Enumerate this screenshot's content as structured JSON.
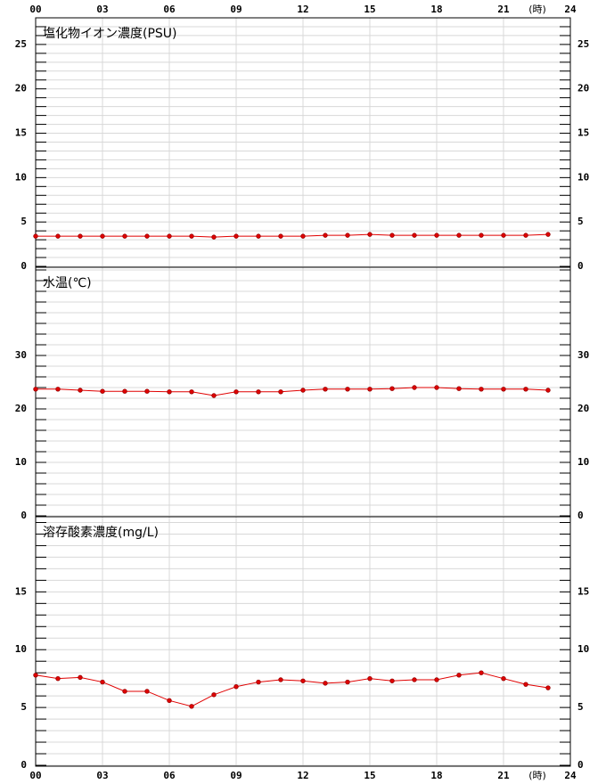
{
  "chart_data": [
    {
      "type": "line",
      "title": "塩化物イオン濃度(PSU)",
      "color": "#e00000",
      "grid": true,
      "x_unit": "(時)",
      "x": [
        0,
        1,
        2,
        3,
        4,
        5,
        6,
        7,
        8,
        9,
        10,
        11,
        12,
        13,
        14,
        15,
        16,
        17,
        18,
        19,
        20,
        21,
        22,
        23
      ],
      "values": [
        3.4,
        3.4,
        3.4,
        3.4,
        3.4,
        3.4,
        3.4,
        3.4,
        3.3,
        3.4,
        3.4,
        3.4,
        3.4,
        3.5,
        3.5,
        3.6,
        3.5,
        3.5,
        3.5,
        3.5,
        3.5,
        3.5,
        3.5,
        3.6
      ],
      "xlim": [
        0,
        24
      ],
      "xticks": [
        {
          "value": 0,
          "label": "00"
        },
        {
          "value": 3,
          "label": "03"
        },
        {
          "value": 6,
          "label": "06"
        },
        {
          "value": 9,
          "label": "09"
        },
        {
          "value": 12,
          "label": "12"
        },
        {
          "value": 15,
          "label": "15"
        },
        {
          "value": 18,
          "label": "18"
        },
        {
          "value": 21,
          "label": "21"
        },
        24
      ],
      "ylim": [
        0,
        28
      ],
      "yticks": [
        0,
        5,
        10,
        15,
        20,
        25
      ],
      "minor_yticks": [
        0,
        1,
        2,
        3,
        4,
        5,
        6,
        7,
        8,
        9,
        10,
        11,
        12,
        13,
        14,
        15,
        16,
        17,
        18,
        19,
        20,
        21,
        22,
        23,
        24,
        25,
        26,
        27,
        28
      ]
    },
    {
      "type": "line",
      "title": "水温(℃)",
      "color": "#e00000",
      "grid": true,
      "x": [
        0,
        1,
        2,
        3,
        4,
        5,
        6,
        7,
        8,
        9,
        10,
        11,
        12,
        13,
        14,
        15,
        16,
        17,
        18,
        19,
        20,
        21,
        22,
        23
      ],
      "values": [
        23.7,
        23.7,
        23.5,
        23.3,
        23.3,
        23.3,
        23.2,
        23.2,
        22.5,
        23.2,
        23.2,
        23.2,
        23.5,
        23.7,
        23.7,
        23.7,
        23.8,
        24.0,
        24.0,
        23.8,
        23.7,
        23.7,
        23.7,
        23.5
      ],
      "xlim": [
        0,
        24
      ],
      "xticks": [
        0,
        3,
        6,
        9,
        12,
        15,
        18,
        21,
        24
      ],
      "ylim": [
        0,
        46.5
      ],
      "yticks": [
        0,
        10,
        20,
        30
      ],
      "minor_yticks": [
        0,
        2,
        4,
        6,
        8,
        10,
        12,
        14,
        16,
        18,
        20,
        22,
        24,
        26,
        28,
        30,
        32,
        34,
        36,
        38,
        40,
        42,
        44,
        46
      ]
    },
    {
      "type": "line",
      "title": "溶存酸素濃度(mg/L)",
      "color": "#e00000",
      "grid": true,
      "x_unit": "(時)",
      "x": [
        0,
        1,
        2,
        3,
        4,
        5,
        6,
        7,
        8,
        9,
        10,
        11,
        12,
        13,
        14,
        15,
        16,
        17,
        18,
        19,
        20,
        21,
        22,
        23
      ],
      "values": [
        7.8,
        7.5,
        7.6,
        7.2,
        6.4,
        6.4,
        5.6,
        5.1,
        6.1,
        6.8,
        7.2,
        7.4,
        7.3,
        7.1,
        7.2,
        7.5,
        7.3,
        7.4,
        7.4,
        7.8,
        8.0,
        7.5,
        7.0,
        6.7
      ],
      "xlim": [
        0,
        24
      ],
      "xticks": [
        {
          "value": 0,
          "label": "00"
        },
        {
          "value": 3,
          "label": "03"
        },
        {
          "value": 6,
          "label": "06"
        },
        {
          "value": 9,
          "label": "09"
        },
        {
          "value": 12,
          "label": "12"
        },
        {
          "value": 15,
          "label": "15"
        },
        {
          "value": 18,
          "label": "18"
        },
        {
          "value": 21,
          "label": "21"
        },
        24
      ],
      "ylim": [
        0,
        21.5
      ],
      "yticks": [
        0,
        5,
        10,
        15
      ],
      "minor_yticks": [
        0,
        1,
        2,
        3,
        4,
        5,
        6,
        7,
        8,
        9,
        10,
        11,
        12,
        13,
        14,
        15,
        16,
        17,
        18,
        19,
        20,
        21
      ]
    }
  ]
}
